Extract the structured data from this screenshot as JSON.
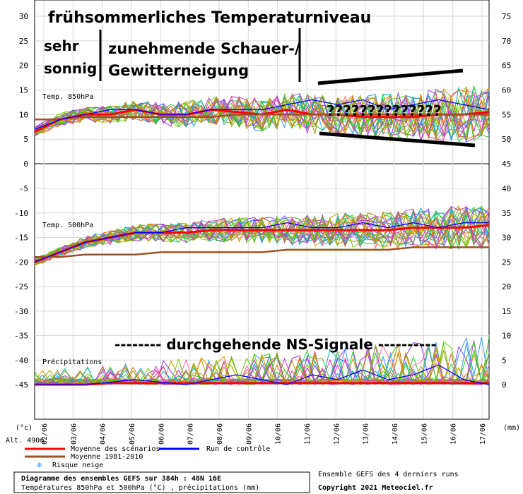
{
  "chart_data": {
    "type": "line",
    "dates": [
      "02/06",
      "03/06",
      "04/06",
      "05/06",
      "06/06",
      "07/06",
      "08/06",
      "09/06",
      "10/06",
      "11/06",
      "12/06",
      "13/06",
      "14/06",
      "15/06",
      "16/06",
      "17/06"
    ],
    "axes": {
      "left_ticks": [
        "30",
        "25",
        "20",
        "15",
        "10",
        "5",
        "0",
        "-5",
        "-10",
        "-15",
        "-20",
        "-25",
        "-30",
        "-35",
        "-40",
        "-45"
      ],
      "right_top_ticks": [
        "75",
        "70",
        "65",
        "60",
        "55",
        "50",
        "45"
      ],
      "right_bottom_ticks": [
        "40",
        "35",
        "30",
        "25",
        "20",
        "15",
        "10",
        "5",
        "0"
      ],
      "left_unit": "(°c)",
      "right_unit": "(mm)",
      "altitude": "Alt. 490m"
    },
    "panels": {
      "t850_label": "Temp. 850hPa",
      "t500_label": "Temp. 500hPa",
      "precip_label": "Précipitations"
    },
    "series": [
      {
        "name": "Moyenne des scénarios",
        "color": "#ff0000",
        "t850": [
          6.5,
          9,
          10,
          10,
          11,
          10,
          10,
          11,
          10.5,
          10,
          11,
          10,
          10,
          9.5,
          9.5,
          9.5,
          10,
          10,
          10.5
        ],
        "t500": [
          -20,
          -18,
          -16,
          -15,
          -14,
          -14,
          -14,
          -13.5,
          -13.5,
          -13.5,
          -13.5,
          -13.5,
          -13.5,
          -13.5,
          -13.5,
          -13,
          -13,
          -13,
          -12.5
        ],
        "precip": [
          0,
          0,
          0,
          0.3,
          0.3,
          0.3,
          0.3,
          0.3,
          0.3,
          0.3,
          0.3,
          0.3,
          0.3,
          0.3,
          0.3,
          0.3,
          0.3,
          0.3,
          0.3
        ]
      },
      {
        "name": "Moyenne 1981-2010",
        "color": "#a05020",
        "t850": [
          9,
          9,
          9.5,
          9.5,
          9.5,
          9.5,
          9.5,
          9.5,
          10,
          10,
          10,
          10,
          10,
          10,
          10,
          10,
          10,
          10,
          10
        ],
        "t500": [
          -19,
          -19,
          -18.5,
          -18.5,
          -18.5,
          -18,
          -18,
          -18,
          -18,
          -18,
          -17.5,
          -17.5,
          -17.5,
          -17.5,
          -17.5,
          -17,
          -17,
          -17,
          -17
        ],
        "precip": []
      },
      {
        "name": "Run de contrôle",
        "color": "#0000ff",
        "t850": [
          7,
          9,
          10,
          11,
          11,
          10,
          10,
          11,
          11,
          11,
          12,
          13,
          12,
          13,
          11,
          12,
          13,
          12,
          11
        ],
        "t500": [
          -20,
          -18,
          -16,
          -15,
          -14,
          -14,
          -13,
          -13,
          -13,
          -13,
          -12,
          -13,
          -13,
          -12,
          -13,
          -12,
          -13,
          -12,
          -12
        ],
        "precip": [
          0,
          0,
          0,
          0.5,
          1,
          0.5,
          0,
          1,
          2,
          1,
          0,
          2,
          1,
          3,
          1,
          2,
          4,
          1,
          0
        ]
      }
    ],
    "legend": {
      "risque_neige": "Risque neige"
    },
    "info": {
      "title_line1": "Diagramme des ensembles GEFS sur 384h : 48N 16E",
      "title_line2": "Températures 850hPa et 500hPa (°C) , précipitations (mm)",
      "right_line1": "Ensemble GEFS des 4 derniers runs",
      "right_line2": "Copyright 2021 Meteociel.fr"
    },
    "annotations": {
      "headline": "frühsommerliches Temperaturniveau",
      "sehr": "sehr",
      "sonnig": "sonnig",
      "schauer1": "zunehmende Schauer-/",
      "schauer2": "Gewitterneigung",
      "question": "??????????????",
      "ns_signale": "-------- durchgehende NS-Signale ----------"
    }
  }
}
